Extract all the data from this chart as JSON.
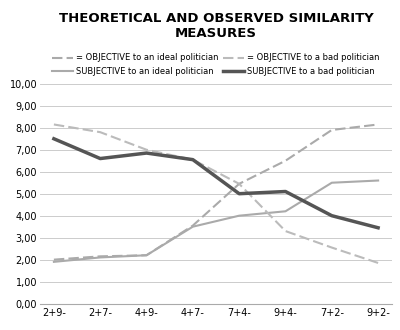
{
  "title_line1": "THEORETICAL AND OBSERVED SIMILARITY",
  "title_line2": "MEASURES",
  "x_labels": [
    "2+9-",
    "2+7-",
    "4+9-",
    "4+7-",
    "7+4-",
    "9+4-",
    "7+2-",
    "9+2-"
  ],
  "objective_ideal": [
    2.0,
    2.15,
    2.2,
    3.55,
    5.45,
    6.5,
    7.9,
    8.15
  ],
  "subjective_ideal": [
    1.9,
    2.1,
    2.2,
    3.5,
    4.0,
    4.2,
    5.5,
    5.6
  ],
  "objective_bad": [
    8.15,
    7.8,
    7.0,
    6.55,
    5.45,
    3.3,
    2.55,
    1.85
  ],
  "subjective_bad": [
    7.5,
    6.6,
    6.85,
    6.55,
    5.0,
    5.1,
    4.0,
    3.45
  ],
  "ylim": [
    0,
    10
  ],
  "yticks": [
    0.0,
    1.0,
    2.0,
    3.0,
    4.0,
    5.0,
    6.0,
    7.0,
    8.0,
    9.0,
    10.0
  ],
  "color_objective_ideal": "#aaaaaa",
  "color_subjective_ideal": "#aaaaaa",
  "color_objective_bad": "#bbbbbb",
  "color_subjective_bad": "#555555",
  "legend_obj_ideal": "= OBJECTIVE to an ideal politician",
  "legend_subj_ideal": "SUBJECTIVE to an ideal politician",
  "legend_obj_bad": "= OBJECTIVE to a bad politician",
  "legend_subj_bad": "SUBJECTIVE to a bad politician"
}
